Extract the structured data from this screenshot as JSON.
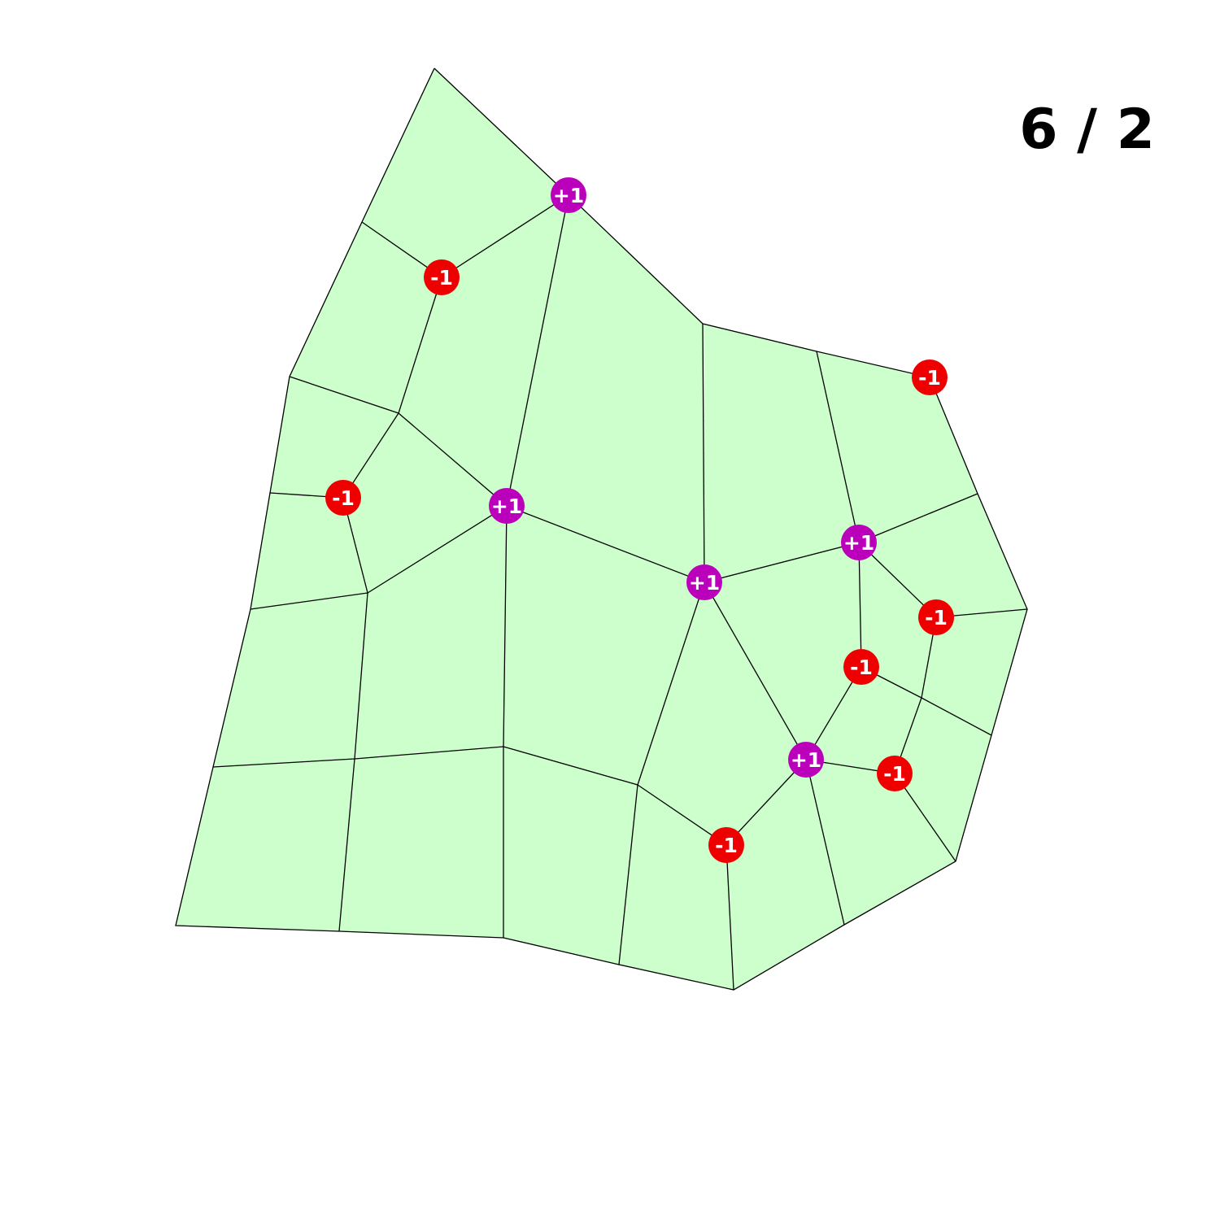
{
  "counter": {
    "label": "6 / 2"
  },
  "colors": {
    "face_fill": "#ccffcc",
    "edge": "#000000",
    "positive_marker": "#bb00bb",
    "negative_marker": "#ee0000",
    "marker_text": "#ffffff"
  },
  "singularities": [
    {
      "id": "s1",
      "label": "+1",
      "sign": "positive"
    },
    {
      "id": "s2",
      "label": "-1",
      "sign": "negative"
    },
    {
      "id": "s3",
      "label": "-1",
      "sign": "negative"
    },
    {
      "id": "s4",
      "label": "-1",
      "sign": "negative"
    },
    {
      "id": "s5",
      "label": "+1",
      "sign": "positive"
    },
    {
      "id": "s6",
      "label": "+1",
      "sign": "positive"
    },
    {
      "id": "s7",
      "label": "+1",
      "sign": "positive"
    },
    {
      "id": "s8",
      "label": "-1",
      "sign": "negative"
    },
    {
      "id": "s9",
      "label": "-1",
      "sign": "negative"
    },
    {
      "id": "s10",
      "label": "+1",
      "sign": "positive"
    },
    {
      "id": "s11",
      "label": "-1",
      "sign": "negative"
    },
    {
      "id": "s12",
      "label": "-1",
      "sign": "negative"
    }
  ]
}
